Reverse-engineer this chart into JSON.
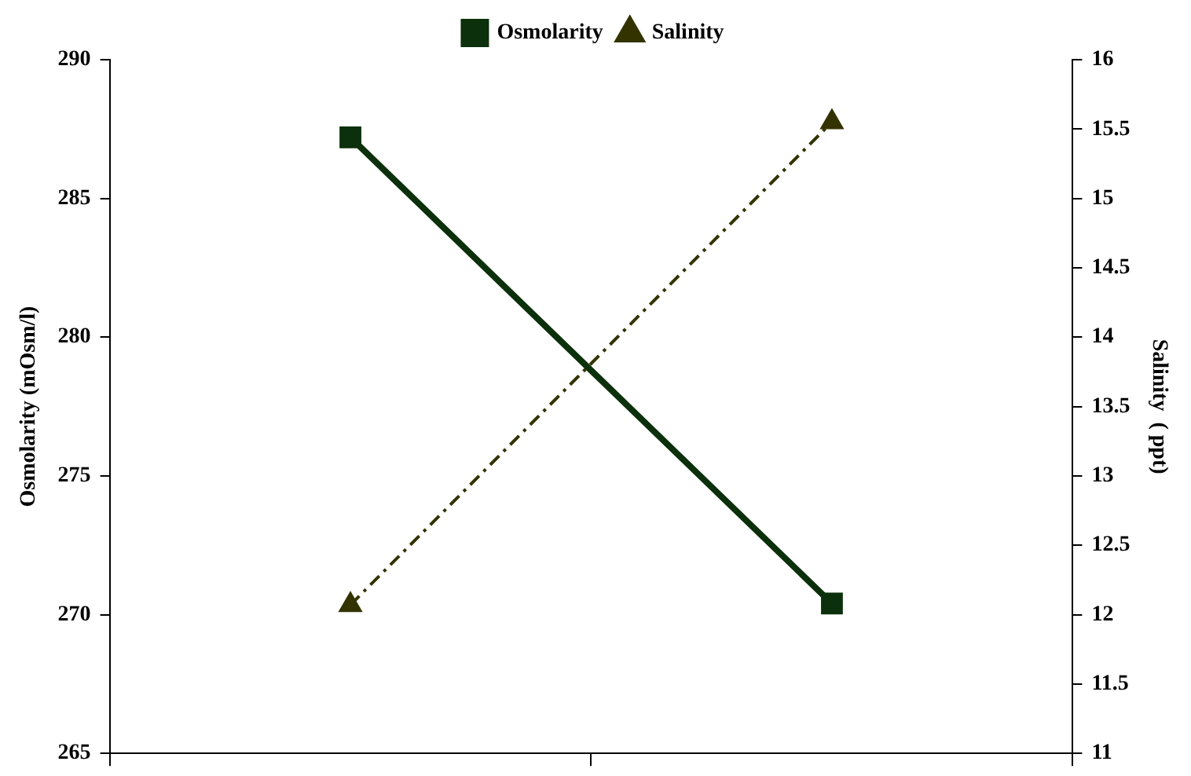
{
  "chart_data": {
    "type": "line",
    "ylabel": "Osmolarity (mOsm/l)",
    "y2label": "Salinity  ( ppt)",
    "categories": [
      null,
      null
    ],
    "series": [
      {
        "name": "Osmolarity",
        "color": "#0b300b",
        "values": [
          287.2,
          270.4
        ],
        "marker": "square",
        "line_style": "solid"
      },
      {
        "name": "Salinity",
        "color": "#333300",
        "values": [
          12.07,
          15.55
        ],
        "axis": "y2",
        "marker": "triangle",
        "line_style": "dashed"
      }
    ],
    "ylim": [
      265,
      290
    ],
    "yticks": [
      265,
      270,
      275,
      280,
      285,
      290
    ],
    "y2lim": [
      11,
      16
    ],
    "y2ticks": [
      11,
      11.5,
      12,
      12.5,
      13,
      13.5,
      14,
      14.5,
      15,
      15.5,
      16
    ],
    "grid": false,
    "legend": "top",
    "tick_labels": "y"
  }
}
